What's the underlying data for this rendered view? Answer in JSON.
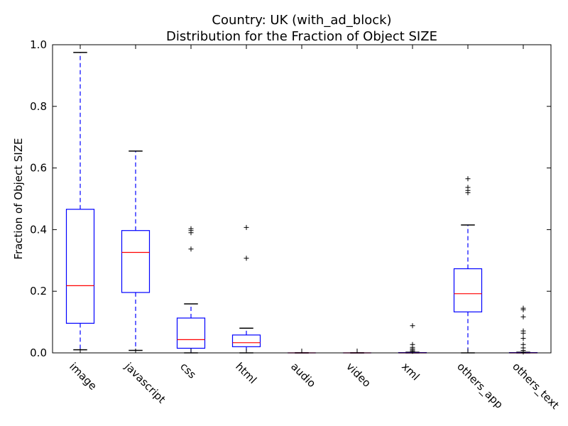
{
  "chart_data": {
    "type": "box",
    "title": "Country: UK  (with_ad_block)",
    "subtitle": "Distribution for the Fraction of Object SIZE",
    "xlabel": "",
    "ylabel": "Fraction of Object SIZE",
    "ylim": [
      0,
      1.0
    ],
    "yticks": [
      0.0,
      0.2,
      0.4,
      0.6,
      0.8,
      1.0
    ],
    "ytick_labels": [
      "0.0",
      "0.2",
      "0.4",
      "0.6",
      "0.8",
      "1.0"
    ],
    "grid": false,
    "colors": {
      "box": "#0000ff",
      "median": "#ff0000",
      "whisker": "#0000ff",
      "cap": "#000000",
      "flier": "#000000"
    },
    "categories": [
      "image",
      "javascript",
      "css",
      "html",
      "audio",
      "video",
      "xml",
      "others_app",
      "others_text"
    ],
    "boxes": [
      {
        "name": "image",
        "whislo": 0.01,
        "q1": 0.096,
        "med": 0.218,
        "q3": 0.466,
        "whishi": 0.975,
        "fliers": []
      },
      {
        "name": "javascript",
        "whislo": 0.008,
        "q1": 0.196,
        "med": 0.326,
        "q3": 0.397,
        "whishi": 0.655,
        "fliers": []
      },
      {
        "name": "css",
        "whislo": 0.0,
        "q1": 0.015,
        "med": 0.043,
        "q3": 0.113,
        "whishi": 0.159,
        "fliers": [
          0.337,
          0.39,
          0.397,
          0.403
        ]
      },
      {
        "name": "html",
        "whislo": 0.0,
        "q1": 0.02,
        "med": 0.033,
        "q3": 0.058,
        "whishi": 0.08,
        "fliers": [
          0.307,
          0.407
        ]
      },
      {
        "name": "audio",
        "whislo": 0.0,
        "q1": 0.0,
        "med": 0.0,
        "q3": 0.0,
        "whishi": 0.0,
        "fliers": []
      },
      {
        "name": "video",
        "whislo": 0.0,
        "q1": 0.0,
        "med": 0.0,
        "q3": 0.0,
        "whishi": 0.0,
        "fliers": []
      },
      {
        "name": "xml",
        "whislo": 0.0,
        "q1": 0.0,
        "med": 0.0,
        "q3": 0.001,
        "whishi": 0.002,
        "fliers": [
          0.005,
          0.009,
          0.013,
          0.018,
          0.027,
          0.088
        ]
      },
      {
        "name": "others_app",
        "whislo": 0.0,
        "q1": 0.133,
        "med": 0.192,
        "q3": 0.273,
        "whishi": 0.415,
        "fliers": [
          0.52,
          0.527,
          0.537,
          0.565
        ]
      },
      {
        "name": "others_text",
        "whislo": 0.0,
        "q1": 0.0,
        "med": 0.0,
        "q3": 0.001,
        "whishi": 0.002,
        "fliers": [
          0.003,
          0.008,
          0.016,
          0.027,
          0.047,
          0.064,
          0.071,
          0.117,
          0.14,
          0.145
        ]
      }
    ]
  }
}
